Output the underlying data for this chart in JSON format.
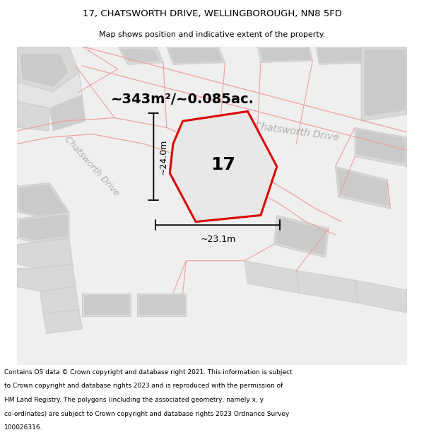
{
  "title": "17, CHATSWORTH DRIVE, WELLINGBOROUGH, NN8 5FD",
  "subtitle": "Map shows position and indicative extent of the property.",
  "area_label": "~343m²/~0.085ac.",
  "number_label": "17",
  "dim_vertical": "~24.0m",
  "dim_horizontal": "~23.1m",
  "road_label_upper": "Chatsworth Drive",
  "road_label_lower": "Chatsworth Drive",
  "footer": "Contains OS data © Crown copyright and database right 2021. This information is subject to Crown copyright and database rights 2023 and is reproduced with the permission of HM Land Registry. The polygons (including the associated geometry, namely x, y co-ordinates) are subject to Crown copyright and database rights 2023 Ordnance Survey 100026316.",
  "boundary_color": "#dd0000",
  "road_line_color": "#f0a0a0",
  "building_fc": "#d8d8d8",
  "building_ec": "#cccccc",
  "map_bg": "#efefef",
  "road_bg": "#e8e8e8",
  "title_fontsize": 9.5,
  "subtitle_fontsize": 8,
  "area_fontsize": 14,
  "number_fontsize": 18,
  "dim_fontsize": 9,
  "road_fontsize": 10,
  "footer_fontsize": 6.5
}
